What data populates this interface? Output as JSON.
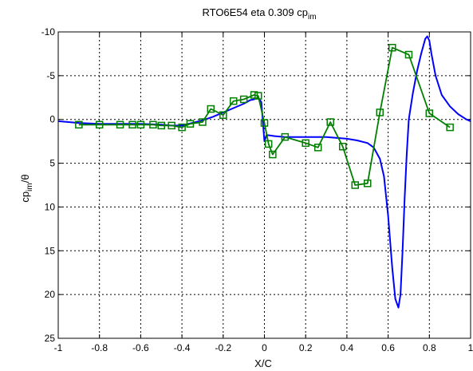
{
  "chart_data": {
    "type": "line",
    "title_main": "RTO6E54 eta 0.309 cp",
    "title_sub": "im",
    "xlabel": "X/C",
    "ylabel_main": "cp",
    "ylabel_sub": "im",
    "ylabel_suffix": "/θ",
    "xlim": [
      -1,
      1
    ],
    "ylim": [
      -10,
      25
    ],
    "y_reversed": true,
    "grid": true,
    "x_ticks": [
      -1,
      -0.8,
      -0.6,
      -0.4,
      -0.2,
      0,
      0.2,
      0.4,
      0.6,
      0.8,
      1
    ],
    "x_tick_labels": [
      "-1",
      "-0.8",
      "-0.6",
      "-0.4",
      "-0.2",
      "0",
      "0.2",
      "0.4",
      "0.6",
      "0.8",
      "1"
    ],
    "y_ticks": [
      -10,
      -5,
      0,
      5,
      10,
      15,
      20,
      25
    ],
    "y_tick_labels": [
      "-10",
      "-5",
      "0",
      "5",
      "10",
      "15",
      "20",
      "25"
    ],
    "series": [
      {
        "color": "#0000ff",
        "marker": "none",
        "x": [
          -1,
          -0.9,
          -0.8,
          -0.7,
          -0.6,
          -0.5,
          -0.45,
          -0.4,
          -0.35,
          -0.3,
          -0.25,
          -0.2,
          -0.15,
          -0.1,
          -0.07,
          -0.05,
          -0.03,
          -0.015,
          0,
          0.01,
          0.02,
          0.05,
          0.1,
          0.2,
          0.3,
          0.4,
          0.45,
          0.5,
          0.53,
          0.56,
          0.58,
          0.6,
          0.62,
          0.635,
          0.65,
          0.66,
          0.67,
          0.68,
          0.69,
          0.7,
          0.72,
          0.74,
          0.76,
          0.78,
          0.79,
          0.8,
          0.81,
          0.83,
          0.86,
          0.9,
          0.94,
          0.98,
          1
        ],
        "y": [
          0.2,
          0.4,
          0.5,
          0.5,
          0.5,
          0.6,
          0.7,
          0.7,
          0.4,
          0.1,
          -0.3,
          -0.8,
          -1.3,
          -1.8,
          -2.2,
          -2.3,
          -2.5,
          -2.0,
          2.5,
          1.8,
          1.8,
          1.9,
          2.0,
          2.0,
          2.0,
          2.2,
          2.4,
          2.7,
          3.2,
          4.5,
          6.5,
          11.0,
          17.0,
          20.5,
          21.5,
          20.0,
          15.0,
          9.0,
          4.0,
          0.0,
          -3.0,
          -5.5,
          -7.5,
          -9.2,
          -9.5,
          -9.0,
          -7.5,
          -5.0,
          -2.8,
          -1.5,
          -0.6,
          0.0,
          0.2
        ]
      },
      {
        "color": "#007f00",
        "marker": "square",
        "x": [
          -0.9,
          -0.8,
          -0.7,
          -0.64,
          -0.6,
          -0.54,
          -0.5,
          -0.45,
          -0.4,
          -0.36,
          -0.3,
          -0.26,
          -0.2,
          -0.15,
          -0.1,
          -0.05,
          -0.03,
          0.0,
          0.02,
          0.04,
          0.1,
          0.2,
          0.26,
          0.32,
          0.38,
          0.44,
          0.5,
          0.56,
          0.62,
          0.7,
          0.8,
          0.9
        ],
        "y": [
          0.6,
          0.6,
          0.6,
          0.6,
          0.6,
          0.6,
          0.7,
          0.7,
          0.9,
          0.5,
          0.3,
          -1.2,
          -0.5,
          -2.1,
          -2.3,
          -2.8,
          -2.7,
          0.4,
          2.8,
          4.0,
          2.0,
          2.7,
          3.2,
          0.3,
          3.1,
          7.5,
          7.3,
          -0.8,
          -8.2,
          -7.4,
          -0.7,
          0.9
        ]
      }
    ]
  }
}
